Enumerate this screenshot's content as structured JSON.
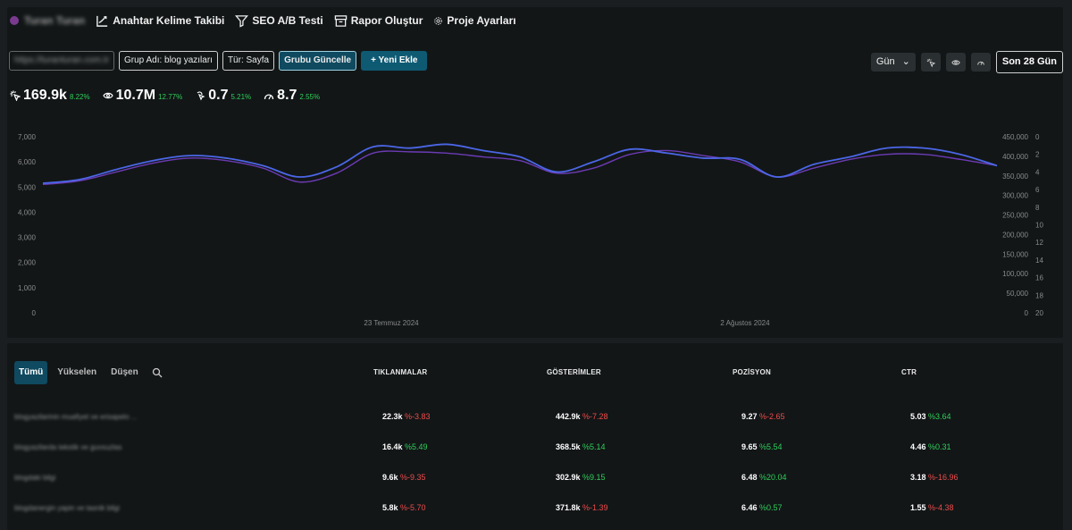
{
  "project": {
    "name": "Turan Turan"
  },
  "nav": [
    {
      "label": "Anahtar Kelime Takibi",
      "icon": "chart-line-icon"
    },
    {
      "label": "SEO A/B Testi",
      "icon": "filter-icon"
    },
    {
      "label": "Rapor Oluştur",
      "icon": "archive-icon"
    },
    {
      "label": "Proje Ayarları",
      "icon": "gear-icon"
    }
  ],
  "filters": {
    "url": "https://turanturan.com.tr",
    "group": "Grup Adı: blog yazıları",
    "type": "Tür: Sayfa",
    "update": "Grubu Güncelle",
    "add": "+ Yeni Ekle"
  },
  "controls": {
    "granularity": "Gün",
    "range": "Son 28 Gün"
  },
  "metrics": [
    {
      "icon": "click-icon",
      "value": "169.9k",
      "change": "8.22%"
    },
    {
      "icon": "eye-icon",
      "value": "10.7M",
      "change": "12.77%"
    },
    {
      "icon": "cursor-icon",
      "value": "0.7",
      "change": "5.21%"
    },
    {
      "icon": "position-icon",
      "value": "8.7",
      "change": "2.55%"
    }
  ],
  "chart_data": {
    "type": "line",
    "x_labels": [
      "23 Temmuz 2024",
      "2 Ağustos 2024"
    ],
    "y_left_ticks": [
      "7,000",
      "6,000",
      "5,000",
      "4,000",
      "3,000",
      "2,000",
      "1,000",
      "0"
    ],
    "y_right_ticks": [
      "450,000",
      "400,000",
      "350,000",
      "300,000",
      "250,000",
      "200,000",
      "150,000",
      "100,000",
      "50,000",
      "0"
    ],
    "y_right2_ticks": [
      "0",
      "2",
      "4",
      "6",
      "8",
      "10",
      "12",
      "14",
      "16",
      "18",
      "20"
    ],
    "ylim_left": [
      0,
      7000
    ],
    "colors": {
      "clicks": "#4b66e6",
      "impressions": "#6c3bb5"
    },
    "series": [
      {
        "values": [
          5150,
          5300,
          5700,
          6050,
          6250,
          6150,
          5850,
          5400,
          5800,
          6600,
          6550,
          6700,
          6450,
          6200,
          5600,
          6000,
          6500,
          6350,
          6150,
          6100,
          5400,
          5900,
          6200,
          6550,
          6550,
          6300,
          5850
        ]
      },
      {
        "values": [
          5100,
          5250,
          5600,
          5950,
          6150,
          6050,
          5750,
          5200,
          5550,
          6350,
          6400,
          6350,
          6200,
          6050,
          5550,
          5750,
          6300,
          6450,
          6250,
          6000,
          5400,
          5750,
          6100,
          6300,
          6300,
          6100,
          5850
        ]
      }
    ]
  },
  "table": {
    "tabs": [
      "Tümü",
      "Yükselen",
      "Düşen"
    ],
    "headers": [
      "TIKLANMALAR",
      "GÖSTERİMLER",
      "POZİSYON",
      "CTR"
    ],
    "rows": [
      {
        "name": "blogyazilarinin muafiyet ve erisapelo ...",
        "clicks": "22.3k",
        "clicks_chg": "%-3.83",
        "clicks_dir": "down",
        "impr": "442.9k",
        "impr_chg": "%-7.28",
        "impr_dir": "down",
        "pos": "9.27",
        "pos_chg": "%-2.65",
        "pos_dir": "down",
        "ctr": "5.03",
        "ctr_chg": "%3.64",
        "ctr_dir": "up"
      },
      {
        "name": "blogyazilarda tekstik ve guvsuzlas",
        "clicks": "16.4k",
        "clicks_chg": "%5.49",
        "clicks_dir": "up",
        "impr": "368.5k",
        "impr_chg": "%5.14",
        "impr_dir": "up",
        "pos": "9.65",
        "pos_chg": "%5.54",
        "pos_dir": "up",
        "ctr": "4.46",
        "ctr_chg": "%0.31",
        "ctr_dir": "up"
      },
      {
        "name": "blogdaki bilgi",
        "clicks": "9.6k",
        "clicks_chg": "%-9.35",
        "clicks_dir": "down",
        "impr": "302.9k",
        "impr_chg": "%9.15",
        "impr_dir": "up",
        "pos": "6.48",
        "pos_chg": "%20.04",
        "pos_dir": "up",
        "ctr": "3.18",
        "ctr_chg": "%-16.96",
        "ctr_dir": "down"
      },
      {
        "name": "blogdanergin yapin ve tasnik bilgi",
        "clicks": "5.8k",
        "clicks_chg": "%-5.70",
        "clicks_dir": "down",
        "impr": "371.8k",
        "impr_chg": "%-1.39",
        "impr_dir": "down",
        "pos": "6.46",
        "pos_chg": "%0.57",
        "pos_dir": "up",
        "ctr": "1.55",
        "ctr_chg": "%-4.38",
        "ctr_dir": "down"
      }
    ]
  }
}
